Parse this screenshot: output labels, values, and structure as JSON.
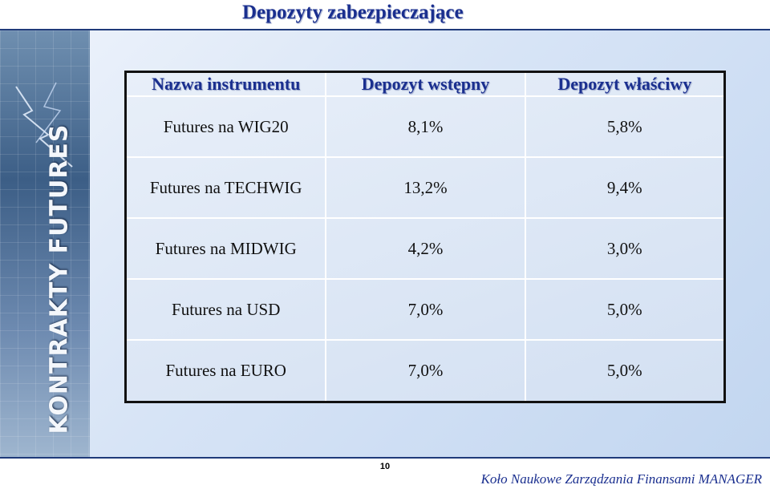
{
  "slide": {
    "title": "Depozyty zabezpieczające",
    "page_number": "10",
    "footer": "Koło Naukowe Zarządzania Finansami MANAGER",
    "sidebar_logo_text": "KONTRAKTY FUTURES"
  },
  "table": {
    "headers": [
      "Nazwa instrumentu",
      "Depozyt wstępny",
      "Depozyt właściwy"
    ],
    "rows": [
      [
        "Futures na WIG20",
        "8,1%",
        "5,8%"
      ],
      [
        "Futures na TECHWIG",
        "13,2%",
        "9,4%"
      ],
      [
        "Futures na MIDWIG",
        "4,2%",
        "3,0%"
      ],
      [
        "Futures na USD",
        "7,0%",
        "5,0%"
      ],
      [
        "Futures na EURO",
        "7,0%",
        "5,0%"
      ]
    ]
  },
  "colors": {
    "title": "#1a2f8f",
    "header_text": "#1a2f8f",
    "table_border": "#111111",
    "background": "#d7e4f6"
  }
}
